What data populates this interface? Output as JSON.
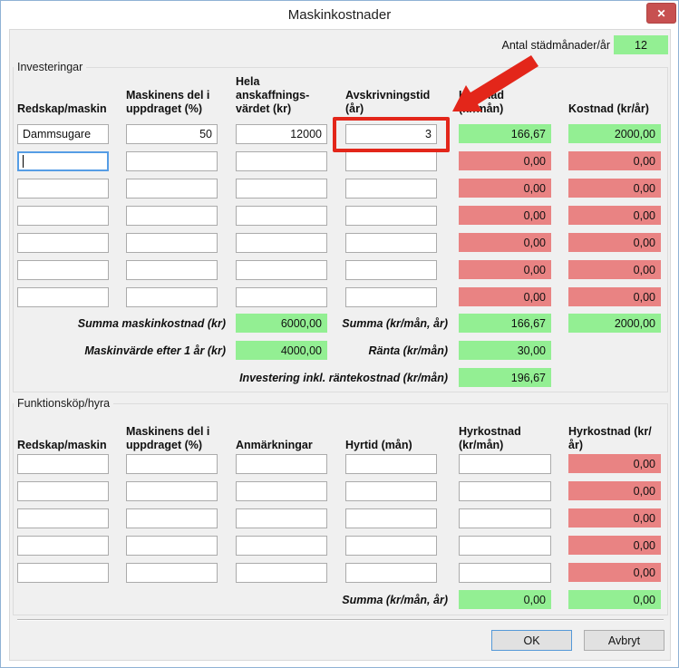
{
  "window": {
    "title": "Maskinkostnader",
    "close_glyph": "✕"
  },
  "months": {
    "label": "Antal städmånader/år",
    "value": "12"
  },
  "investments": {
    "label": "Investeringar",
    "headers": {
      "tool": "Redskap/maskin",
      "share1": "Maskinens del i",
      "share2": "uppdraget (%)",
      "acq1": "Hela anskaffnings-",
      "acq2": "värdet (kr)",
      "depr": "Avskrivningstid (år)",
      "cost_month": "Kostnad (kr/mån)",
      "cost_year": "Kostnad (kr/år)"
    },
    "rows": [
      {
        "tool": "Dammsugare",
        "share": "50",
        "value": "12000",
        "depr": "3",
        "cost_month": "166,67",
        "cost_year": "2000,00",
        "tone": "green",
        "focused": ""
      },
      {
        "tool": "",
        "share": "",
        "value": "",
        "depr": "",
        "cost_month": "0,00",
        "cost_year": "0,00",
        "tone": "red",
        "focused": "tool"
      },
      {
        "tool": "",
        "share": "",
        "value": "",
        "depr": "",
        "cost_month": "0,00",
        "cost_year": "0,00",
        "tone": "red",
        "focused": ""
      },
      {
        "tool": "",
        "share": "",
        "value": "",
        "depr": "",
        "cost_month": "0,00",
        "cost_year": "0,00",
        "tone": "red",
        "focused": ""
      },
      {
        "tool": "",
        "share": "",
        "value": "",
        "depr": "",
        "cost_month": "0,00",
        "cost_year": "0,00",
        "tone": "red",
        "focused": ""
      },
      {
        "tool": "",
        "share": "",
        "value": "",
        "depr": "",
        "cost_month": "0,00",
        "cost_year": "0,00",
        "tone": "red",
        "focused": ""
      },
      {
        "tool": "",
        "share": "",
        "value": "",
        "depr": "",
        "cost_month": "0,00",
        "cost_year": "0,00",
        "tone": "red",
        "focused": ""
      }
    ],
    "summary": {
      "total_label": "Summa maskinkostnad (kr)",
      "total_value": "6000,00",
      "sum_label": "Summa (kr/mån, år)",
      "sum_month": "166,67",
      "sum_year": "2000,00",
      "residual_label": "Maskinvärde efter 1 år (kr)",
      "residual_value": "4000,00",
      "interest_label": "Ränta (kr/mån)",
      "interest_value": "30,00",
      "incl_label": "Investering inkl. räntekostnad (kr/mån)",
      "incl_value": "196,67"
    }
  },
  "rental": {
    "label": "Funktionsköp/hyra",
    "headers": {
      "tool": "Redskap/maskin",
      "share1": "Maskinens del i",
      "share2": "uppdraget (%)",
      "notes": "Anmärkningar",
      "period": "Hyrtid (mån)",
      "cost_month1": "Hyrkostnad",
      "cost_month2": "(kr/mån)",
      "cost_year": "Hyrkostnad (kr/år)"
    },
    "rows": [
      {
        "tool": "",
        "share": "",
        "notes": "",
        "period": "",
        "cost_month": "",
        "cost_year": "0,00"
      },
      {
        "tool": "",
        "share": "",
        "notes": "",
        "period": "",
        "cost_month": "",
        "cost_year": "0,00"
      },
      {
        "tool": "",
        "share": "",
        "notes": "",
        "period": "",
        "cost_month": "",
        "cost_year": "0,00"
      },
      {
        "tool": "",
        "share": "",
        "notes": "",
        "period": "",
        "cost_month": "",
        "cost_year": "0,00"
      },
      {
        "tool": "",
        "share": "",
        "notes": "",
        "period": "",
        "cost_month": "",
        "cost_year": "0,00"
      }
    ],
    "summary": {
      "sum_label": "Summa (kr/mån, år)",
      "sum_month": "0,00",
      "sum_year": "0,00"
    }
  },
  "footer": {
    "ok": "OK",
    "cancel": "Avbryt"
  },
  "colors": {
    "green": "#93ef93",
    "red": "#e98383",
    "annotation": "#e3261a",
    "close_red": "#c75050"
  }
}
